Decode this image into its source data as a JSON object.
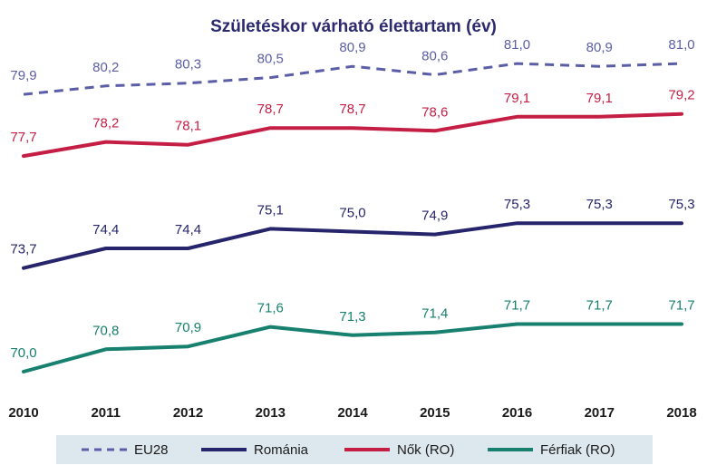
{
  "chart_data": {
    "type": "line",
    "title": "Születéskor várható élettartam (év)",
    "xlabel": "",
    "ylabel": "",
    "x": [
      "2010",
      "2011",
      "2012",
      "2013",
      "2014",
      "2015",
      "2016",
      "2017",
      "2018"
    ],
    "grid": false,
    "legend_position": "bottom",
    "series": [
      {
        "name": "EU28",
        "style": "dashed",
        "color": "#5b5ea6",
        "values": [
          79.9,
          80.2,
          80.3,
          80.5,
          80.9,
          80.6,
          81.0,
          80.9,
          81.0
        ],
        "labels": [
          "79,9",
          "80,2",
          "80,3",
          "80,5",
          "80,9",
          "80,6",
          "81,0",
          "80,9",
          "81,0"
        ]
      },
      {
        "name": "Románia",
        "style": "solid",
        "color": "#26256b",
        "values": [
          73.7,
          74.4,
          74.4,
          75.1,
          75.0,
          74.9,
          75.3,
          75.3,
          75.3
        ],
        "labels": [
          "73,7",
          "74,4",
          "74,4",
          "75,1",
          "75,0",
          "74,9",
          "75,3",
          "75,3",
          "75,3"
        ]
      },
      {
        "name": "Nők (RO)",
        "style": "solid",
        "color": "#c41e45",
        "values": [
          77.7,
          78.2,
          78.1,
          78.7,
          78.7,
          78.6,
          79.1,
          79.1,
          79.2
        ],
        "labels": [
          "77,7",
          "78,2",
          "78,1",
          "78,7",
          "78,7",
          "78,6",
          "79,1",
          "79,1",
          "79,2"
        ]
      },
      {
        "name": "Férfiak (RO)",
        "style": "solid",
        "color": "#17806e",
        "values": [
          70.0,
          70.8,
          70.9,
          71.6,
          71.3,
          71.4,
          71.7,
          71.7,
          71.7
        ],
        "labels": [
          "70,0",
          "70,8",
          "70,9",
          "71,6",
          "71,3",
          "71,4",
          "71,7",
          "71,7",
          "71,7"
        ]
      }
    ]
  }
}
